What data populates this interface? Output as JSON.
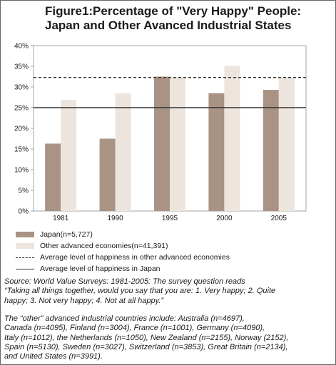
{
  "chart_data": {
    "type": "bar",
    "title": "Figure1:Percentage of \"Very Happy\" People: Japan and Other Avanced Industrial States",
    "title_line1": "Figure1:Percentage of \"Very Happy\" People:",
    "title_line2": "Japan and Other Avanced Industrial States",
    "categories": [
      "1981",
      "1990",
      "1995",
      "2000",
      "2005"
    ],
    "series": [
      {
        "name": "Japan(n=5,727)",
        "values": [
          16.3,
          17.5,
          32.5,
          28.5,
          29.3
        ],
        "color": "#a99384"
      },
      {
        "name": "Other advanced economies(n=41,391)",
        "values": [
          26.9,
          28.5,
          32.4,
          35.1,
          32.4
        ],
        "color": "#ede5dd"
      }
    ],
    "reference_lines": [
      {
        "name": "Average level of happiness in other advanced economies",
        "value": 32.3,
        "style": "dashed",
        "color": "#333333"
      },
      {
        "name": "Average level of happiness in Japan",
        "value": 25.0,
        "style": "solid",
        "color": "#333333"
      }
    ],
    "ylim": [
      0,
      40
    ],
    "yticks": [
      "0%",
      "5%",
      "10%",
      "15%",
      "20%",
      "25%",
      "30%",
      "35%",
      "40%"
    ],
    "ytick_values": [
      0,
      5,
      10,
      15,
      20,
      25,
      30,
      35,
      40
    ],
    "xlabel": "",
    "ylabel": "",
    "grid": false,
    "legend_position": "bottom"
  },
  "source_line1": "Source: World Value Surveys: 1981-2005: The survey question reads",
  "source_line2": "“Taking all things together, would you say that you are: 1. Very happy; 2. Quite",
  "source_line3": "happy; 3. Not very happy; 4. Not at all happy.”",
  "note_line1": "The “other” advanced industrial countries include: Australia (n=4697),",
  "note_line2": "Canada (n=4095), Finland (n=3004), France (n=1001), Germany (n=4090),",
  "note_line3": "Italy (n=1012), the Netherlands (n=1050), New Zealand (n=2155), Norway (2152),",
  "note_line4": "Spain (n=5130), Sweden (n=3027), Switzerland (n=3853), Great Britain (n=2134),",
  "note_line5": "and United States (n=3991)."
}
